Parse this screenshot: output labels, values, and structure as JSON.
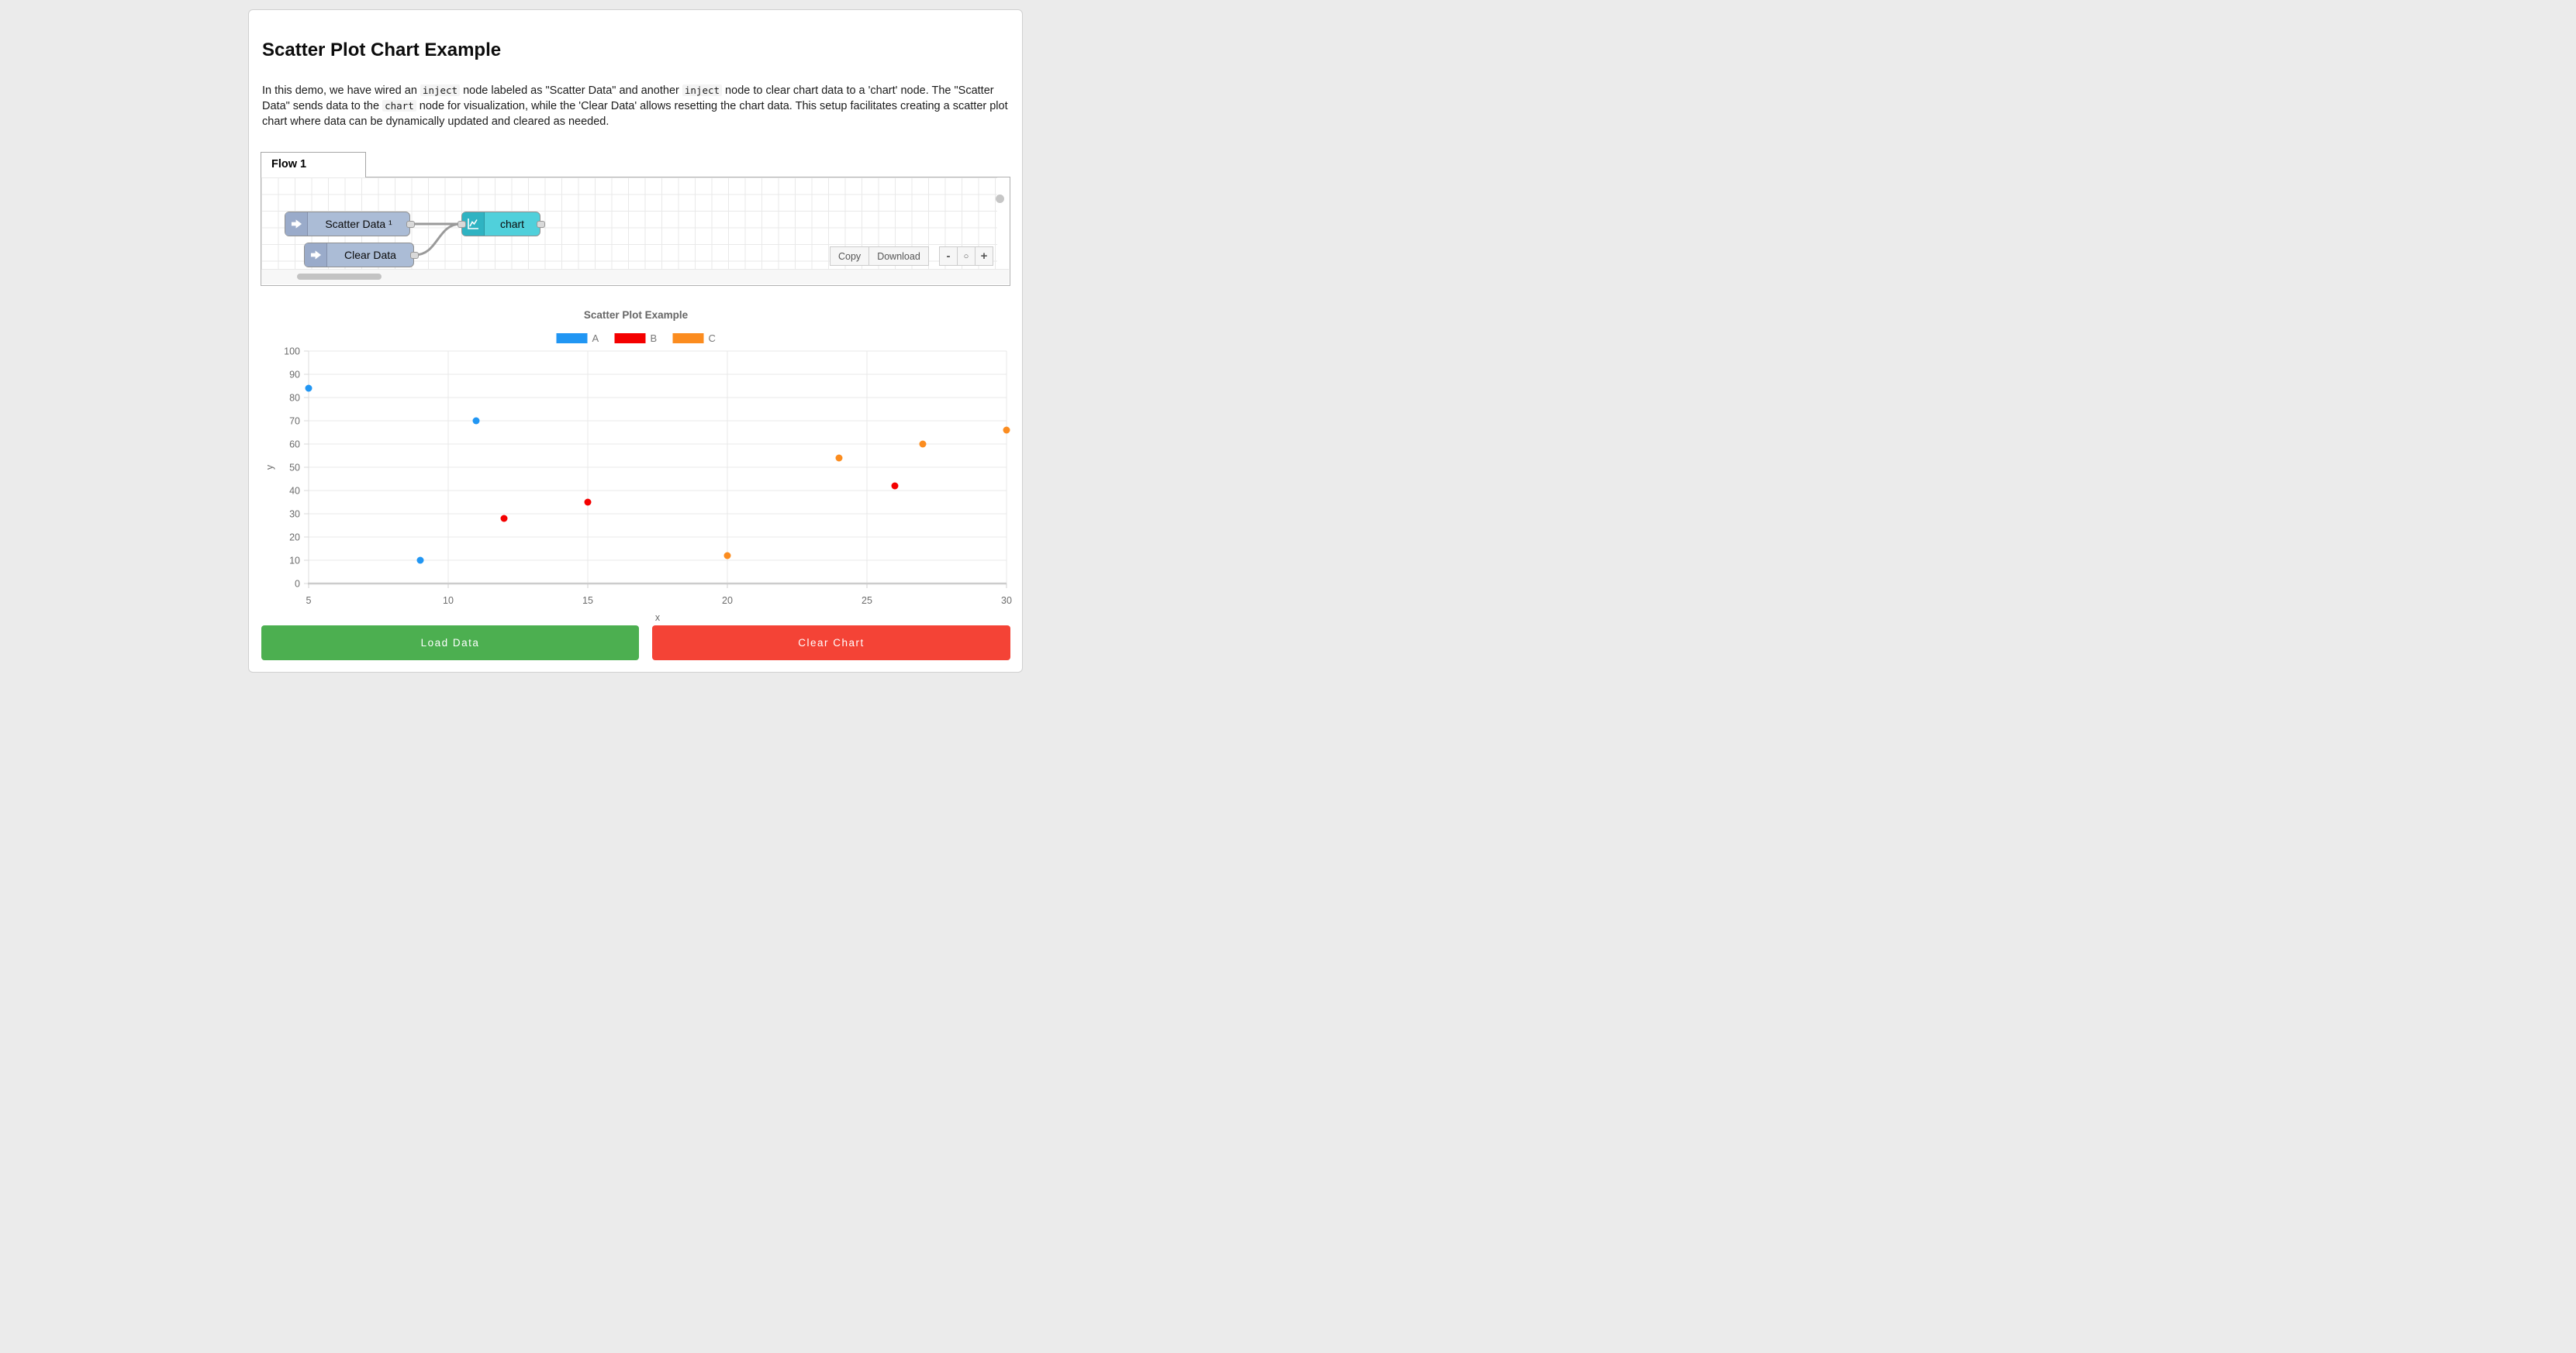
{
  "page": {
    "title": "Scatter Plot Chart Example"
  },
  "description": {
    "segments": [
      {
        "t": "In this demo, we have wired an "
      },
      {
        "t": "inject",
        "code": true
      },
      {
        "t": " node labeled as \"Scatter Data\" and another "
      },
      {
        "t": "inject",
        "code": true
      },
      {
        "t": " node to clear chart data to a 'chart' node. The \"Scatter Data\" sends data to the "
      },
      {
        "t": "chart",
        "code": true
      },
      {
        "t": " node for visualization, while the 'Clear Data' allows resetting the chart data. This setup facilitates creating a scatter plot chart where data can be dynamically updated and cleared as needed."
      }
    ]
  },
  "flow": {
    "tab_label": "Flow 1",
    "nodes": [
      {
        "label": "Scatter Data ¹",
        "type": "inject",
        "icon": "inject-arrow-icon"
      },
      {
        "label": "Clear Data",
        "type": "inject",
        "icon": "inject-arrow-icon"
      },
      {
        "label": "chart",
        "type": "chart",
        "icon": "line-chart-icon"
      }
    ],
    "toolbar": {
      "copy_label": "Copy",
      "download_label": "Download",
      "zoom_out_label": "-",
      "zoom_reset_label": "○",
      "zoom_in_label": "+"
    },
    "colors": {
      "inject_body": "#abbcd6",
      "inject_icon_bg": "#9aabca",
      "chart_body": "#50d0db",
      "chart_icon_bg": "#2fb3c2",
      "wire": "#9a9a9a"
    }
  },
  "chart_data": {
    "type": "scatter",
    "title": "Scatter Plot Example",
    "xlabel": "x",
    "ylabel": "y",
    "xlim": [
      5,
      30
    ],
    "ylim": [
      0,
      100
    ],
    "x_ticks": [
      5,
      10,
      15,
      20,
      25,
      30
    ],
    "y_ticks": [
      0,
      10,
      20,
      30,
      40,
      50,
      60,
      70,
      80,
      90,
      100
    ],
    "grid": true,
    "legend_position": "top",
    "series": [
      {
        "name": "A",
        "color": "#2196f3",
        "points": [
          [
            5,
            84
          ],
          [
            9,
            10
          ],
          [
            11,
            70
          ]
        ]
      },
      {
        "name": "B",
        "color": "#f40000",
        "points": [
          [
            12,
            28
          ],
          [
            15,
            35
          ],
          [
            26,
            42
          ]
        ]
      },
      {
        "name": "C",
        "color": "#fb8c1f",
        "points": [
          [
            20,
            12
          ],
          [
            24,
            54
          ],
          [
            27,
            60
          ],
          [
            30,
            66
          ]
        ]
      }
    ]
  },
  "actions": {
    "load_label": "Load Data",
    "load_color": "#4caf50",
    "clear_label": "Clear Chart",
    "clear_color": "#f44336"
  }
}
